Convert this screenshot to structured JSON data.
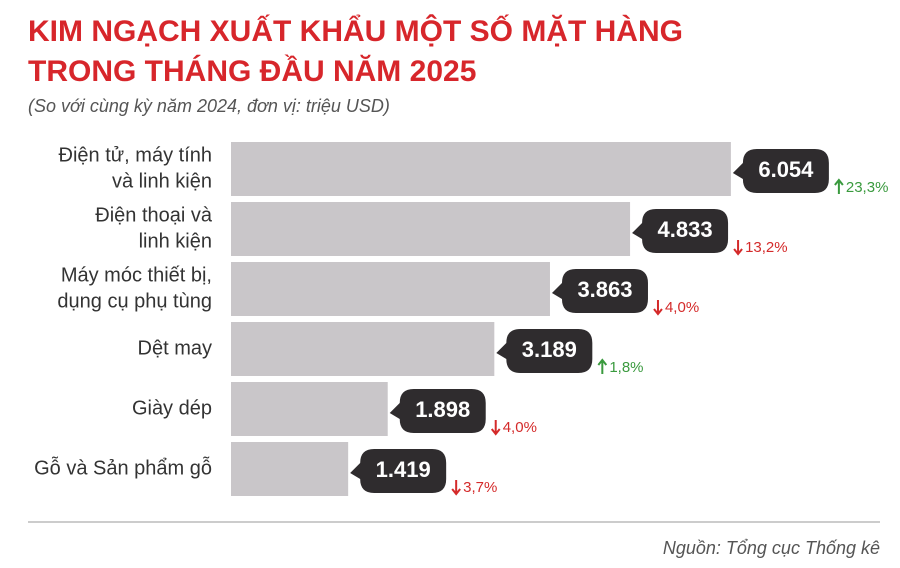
{
  "chart_data": {
    "type": "bar",
    "orientation": "horizontal",
    "title": [
      "KIM NGẠCH XUẤT KHẨU MỘT SỐ MẶT HÀNG",
      "TRONG THÁNG ĐẦU NĂM 2025"
    ],
    "subtitle": "(So với cùng kỳ năm 2024, đơn vị: triệu USD)",
    "categories": [
      [
        "Điện tử, máy tính",
        "và linh kiện"
      ],
      [
        "Điện thoại và",
        "linh kiện"
      ],
      [
        "Máy móc thiết bị,",
        "dụng cụ phụ tùng"
      ],
      [
        "Dệt may"
      ],
      [
        "Giày dép"
      ],
      [
        "Gỗ và Sản phẩm gỗ"
      ]
    ],
    "values": [
      6054,
      4833,
      3863,
      3189,
      1898,
      1419
    ],
    "value_labels": [
      "6.054",
      "4.833",
      "3.863",
      "3.189",
      "1.898",
      "1.419"
    ],
    "color": "#c9c6c9",
    "label_box_color": "#2f2c2e",
    "changes": {
      "values": [
        23.3,
        -13.2,
        -4.0,
        1.8,
        -4.0,
        -3.7
      ],
      "value_labels": [
        "23,3%",
        "13,2%",
        "4,0%",
        "1,8%",
        "4,0%",
        "3,7%"
      ],
      "up_color": "#3a9a3e",
      "down_color": "#d42a2a"
    },
    "xlim": [
      0,
      7000
    ],
    "source": "Nguồn: Tổng cục Thống kê"
  }
}
